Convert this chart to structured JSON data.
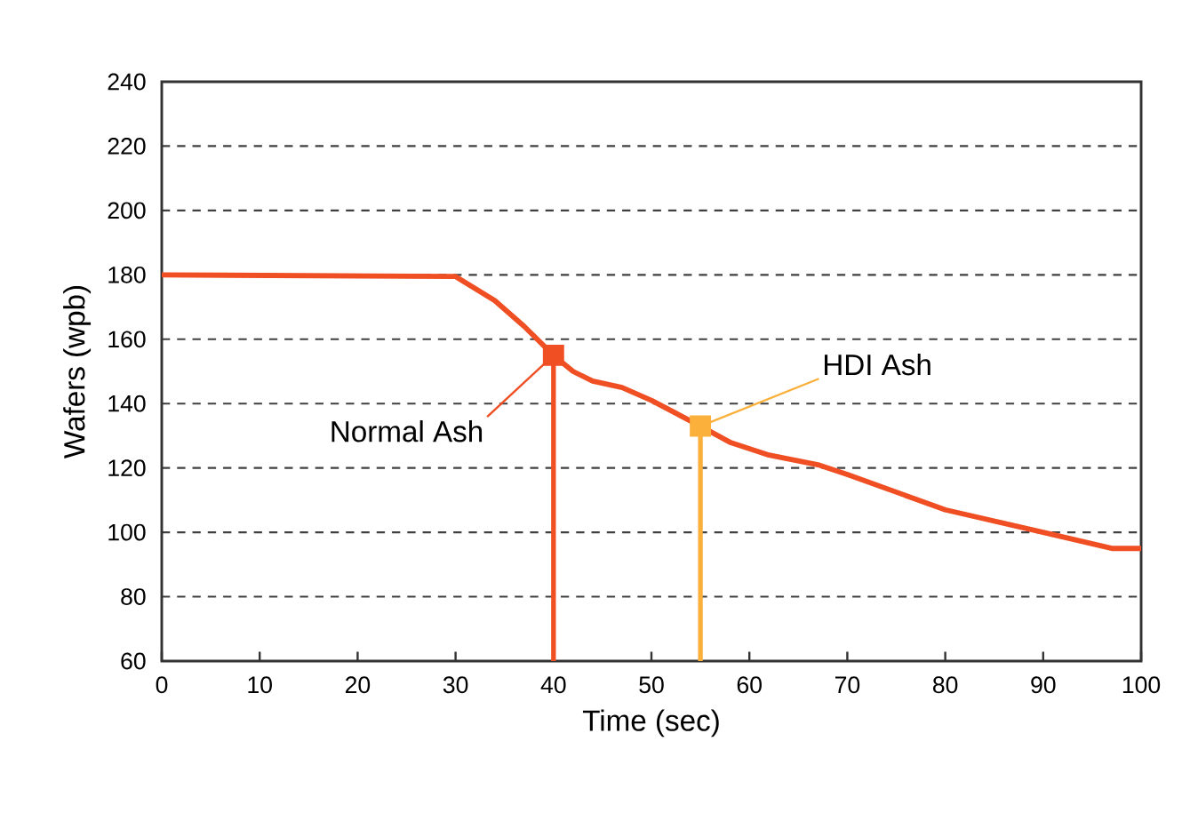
{
  "chart_data": {
    "type": "line",
    "xlabel": "Time (sec)",
    "ylabel": "Wafers (wpb)",
    "xlim": [
      0,
      100
    ],
    "xticks": [
      0,
      10,
      20,
      30,
      40,
      50,
      60,
      70,
      80,
      90,
      100
    ],
    "ylim": [
      60,
      240
    ],
    "yticks": [
      60,
      80,
      100,
      120,
      140,
      160,
      180,
      200,
      220,
      240
    ],
    "grid": "y",
    "series": [
      {
        "color": "#f04e23",
        "x": [
          0,
          30,
          34,
          37,
          40,
          42,
          44,
          47,
          50,
          55,
          58,
          62,
          67,
          70,
          80,
          90,
          97,
          100
        ],
        "values": [
          180,
          179.5,
          172,
          164,
          155,
          150,
          147,
          145,
          141,
          133,
          128,
          124,
          121,
          118,
          107,
          100,
          95,
          95
        ]
      },
      {
        "type": "lollipop",
        "name": "Normal Ash",
        "color": "#f04e23",
        "marker": "square",
        "x": [
          40
        ],
        "values": [
          155
        ]
      },
      {
        "type": "lollipop",
        "name": "HDI Ash",
        "color": "#fbb03b",
        "marker": "square",
        "x": [
          55
        ],
        "values": [
          133
        ]
      }
    ]
  }
}
